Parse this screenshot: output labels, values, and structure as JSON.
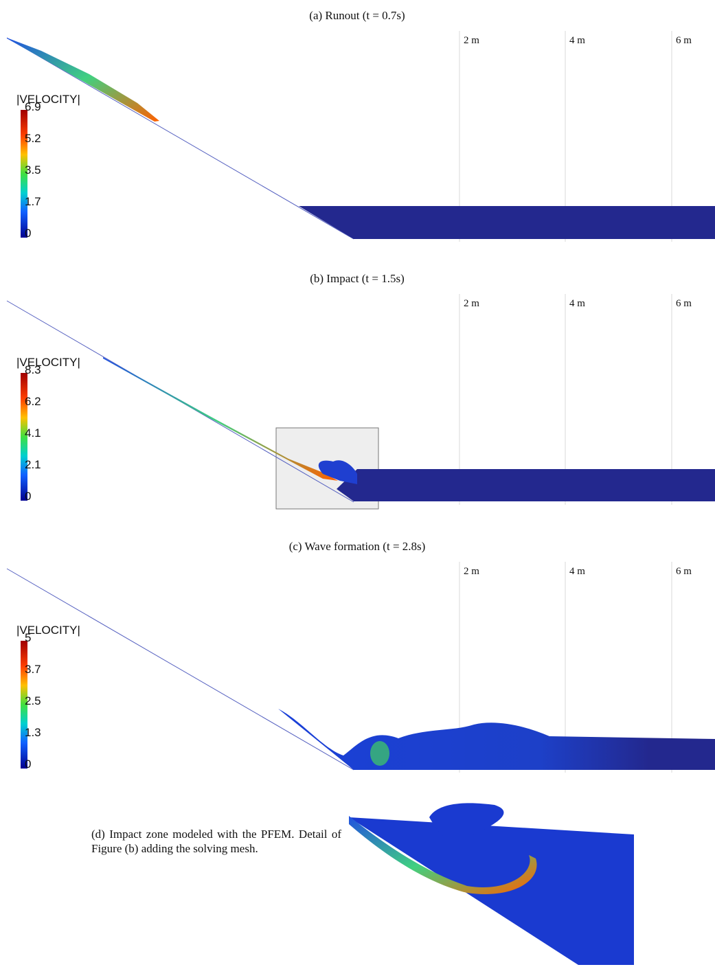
{
  "panels": [
    {
      "caption": "(a) Runout (t = 0.7s)",
      "scale_labels": [
        "2 m",
        "4 m",
        "6 m"
      ],
      "legend": {
        "title": "|VELOCITY|",
        "ticks": [
          "6.9",
          "5.2",
          "3.5",
          "1.7",
          "0"
        ]
      }
    },
    {
      "caption": "(b) Impact (t = 1.5s)",
      "scale_labels": [
        "2 m",
        "4 m",
        "6 m"
      ],
      "legend": {
        "title": "|VELOCITY|",
        "ticks": [
          "8.3",
          "6.2",
          "4.1",
          "2.1",
          "0"
        ]
      }
    },
    {
      "caption": "(c) Wave formation (t = 2.8s)",
      "scale_labels": [
        "2 m",
        "4 m",
        "6 m"
      ],
      "legend": {
        "title": "|VELOCITY|",
        "ticks": [
          "5",
          "3.7",
          "2.5",
          "1.3",
          "0"
        ]
      }
    }
  ],
  "detail": {
    "caption": "(d) Impact zone modeled with the PFEM. Detail of Figure (b) adding the solving mesh."
  }
}
